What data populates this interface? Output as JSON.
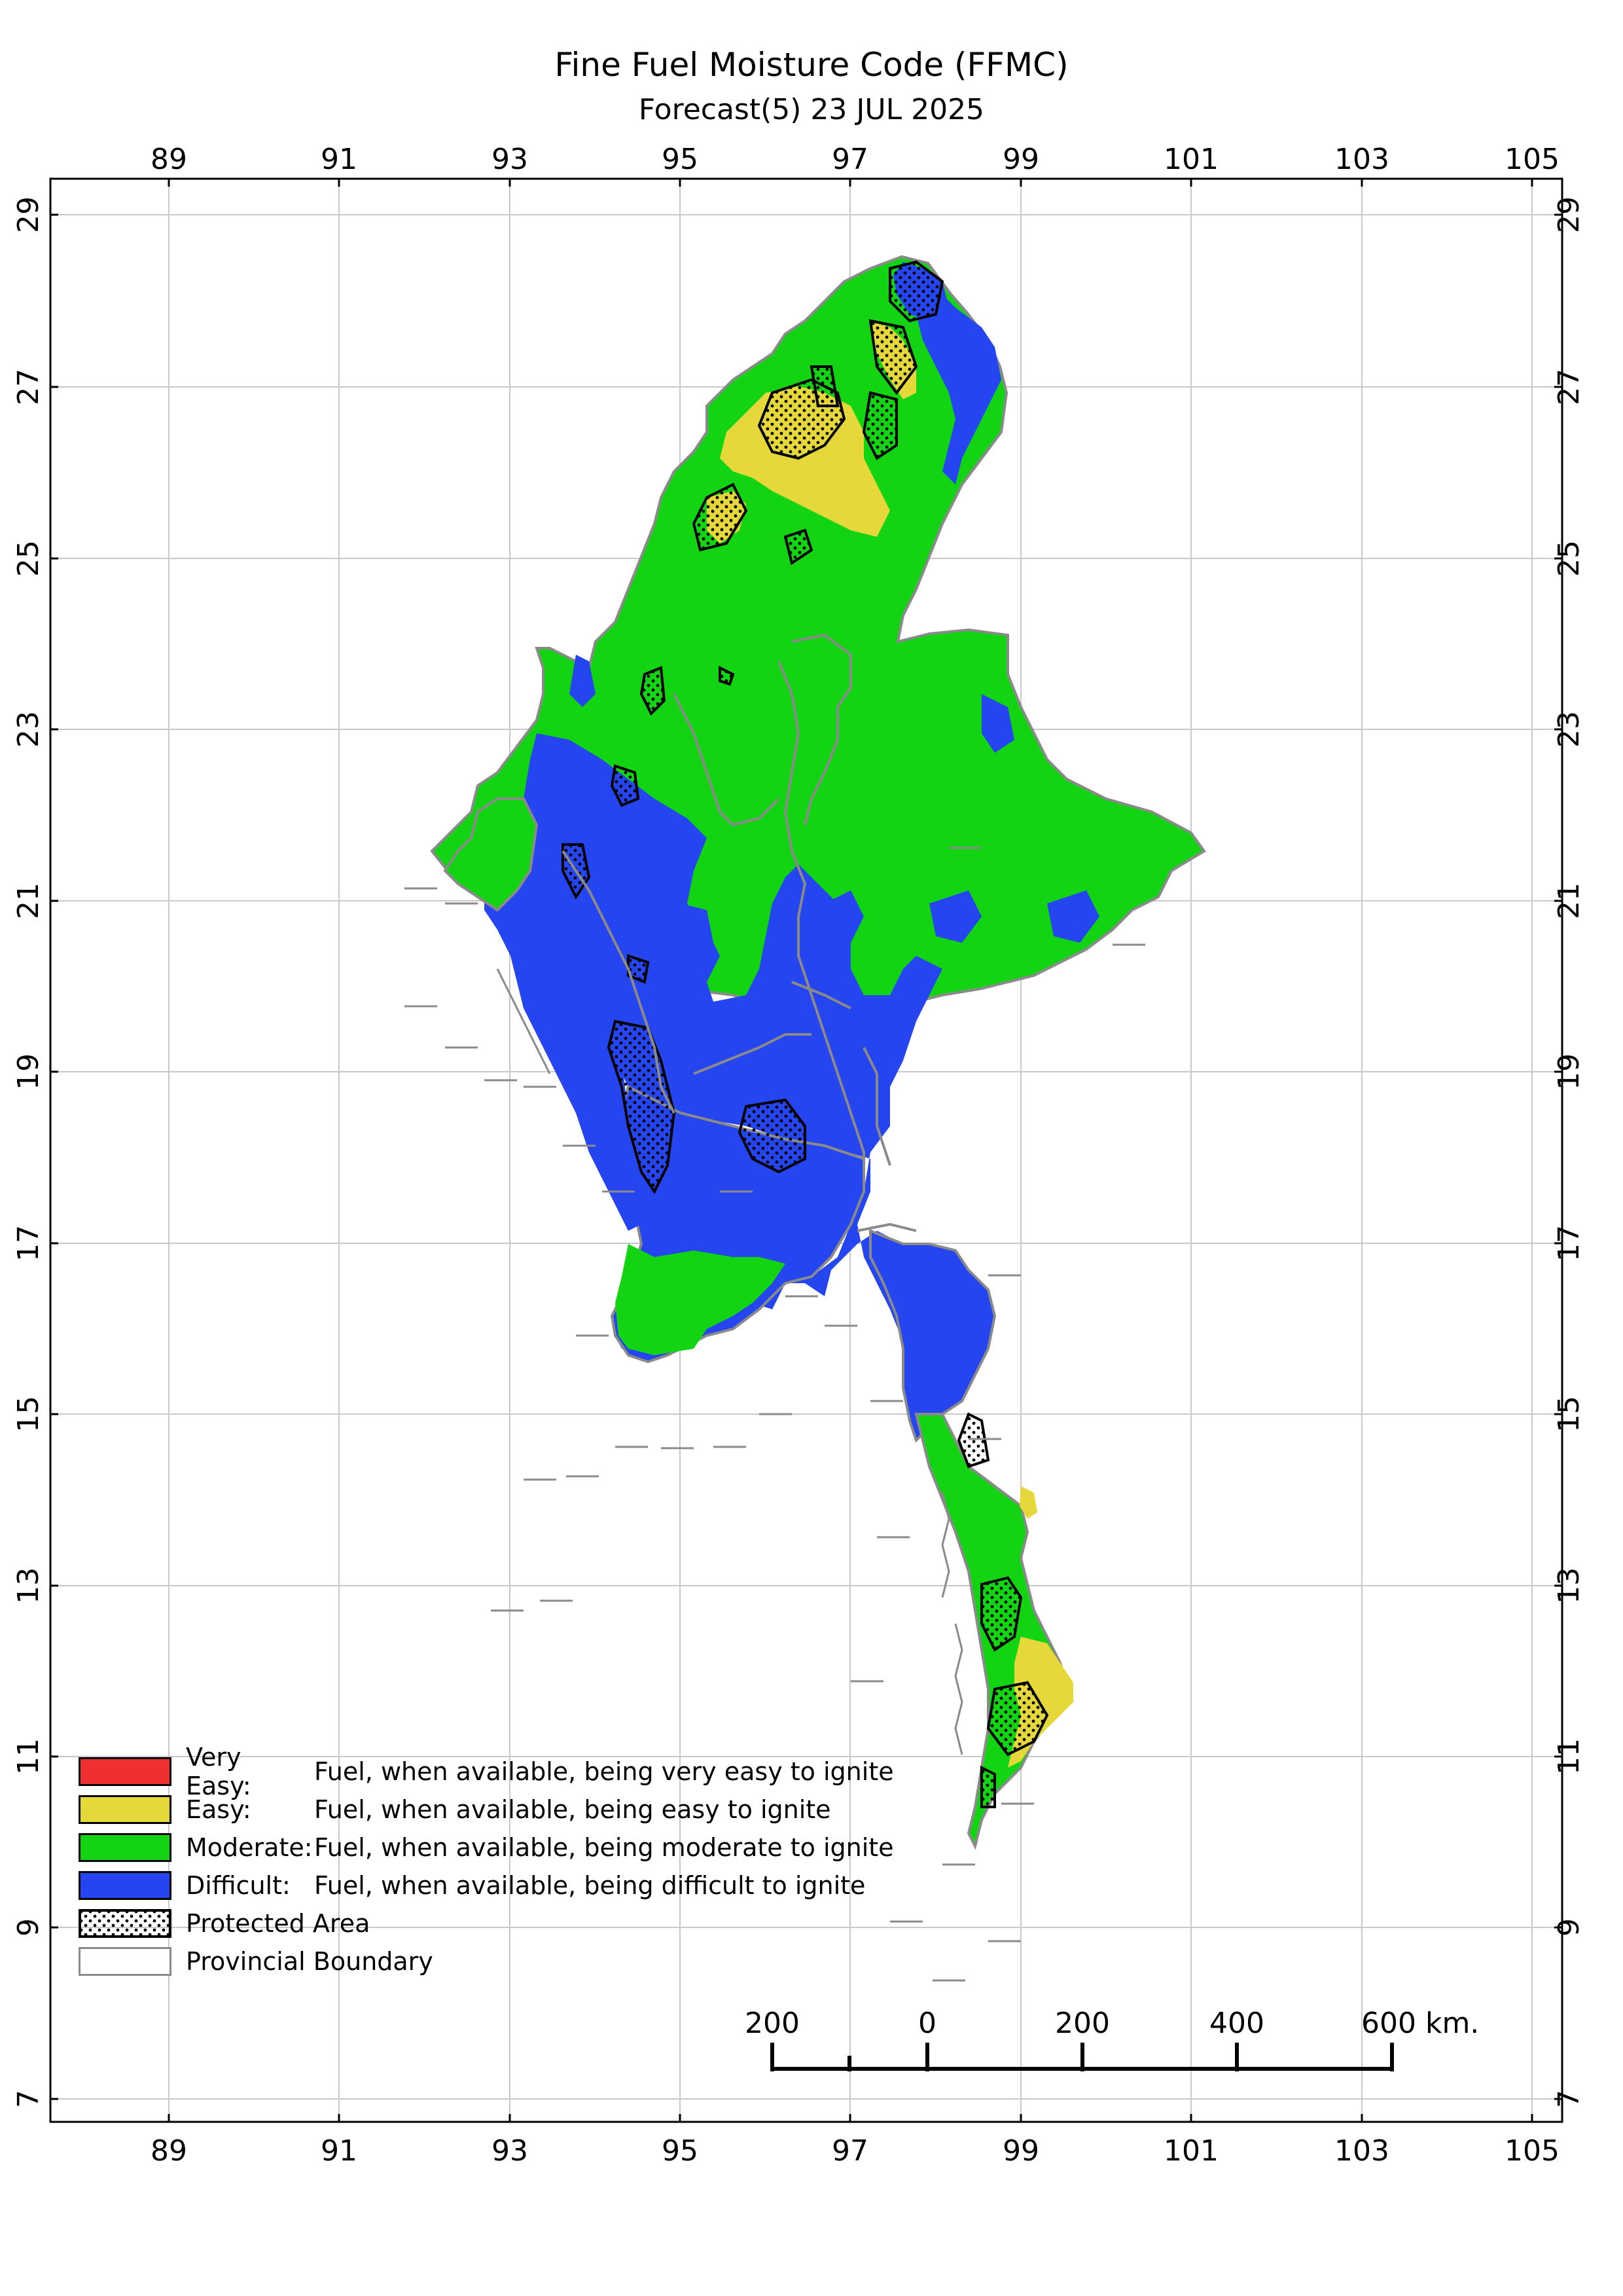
{
  "title": "Fine Fuel Moisture Code (FFMC)",
  "subtitle": "Forecast(5) 23 JUL 2025",
  "axes": {
    "x_ticks": [
      "89",
      "91",
      "93",
      "95",
      "97",
      "99",
      "101",
      "103",
      "105"
    ],
    "y_ticks": [
      "29",
      "27",
      "25",
      "23",
      "21",
      "19",
      "17",
      "15",
      "13",
      "11",
      "9",
      "7"
    ]
  },
  "legend": [
    {
      "name": "Very Easy:",
      "desc": "Fuel, when available, being very easy to ignite",
      "color": "#f03030"
    },
    {
      "name": "Easy:",
      "desc": "Fuel, when available, being easy to ignite",
      "color": "#e6d83a"
    },
    {
      "name": "Moderate:",
      "desc": "Fuel, when available, being moderate to ignite",
      "color": "#12d412"
    },
    {
      "name": "Difficult:",
      "desc": "Fuel, when available, being difficult to ignite",
      "color": "#2445f0"
    }
  ],
  "legend_extra": {
    "protected": "Protected Area",
    "boundary": "Provincial Boundary"
  },
  "scale_bar": {
    "labels": [
      "200",
      "0",
      "200",
      "400",
      "600 km."
    ]
  },
  "colors": {
    "easy": "#e6d83a",
    "moderate": "#12d412",
    "difficult": "#2445f0",
    "boundary": "#8a8a8a"
  }
}
